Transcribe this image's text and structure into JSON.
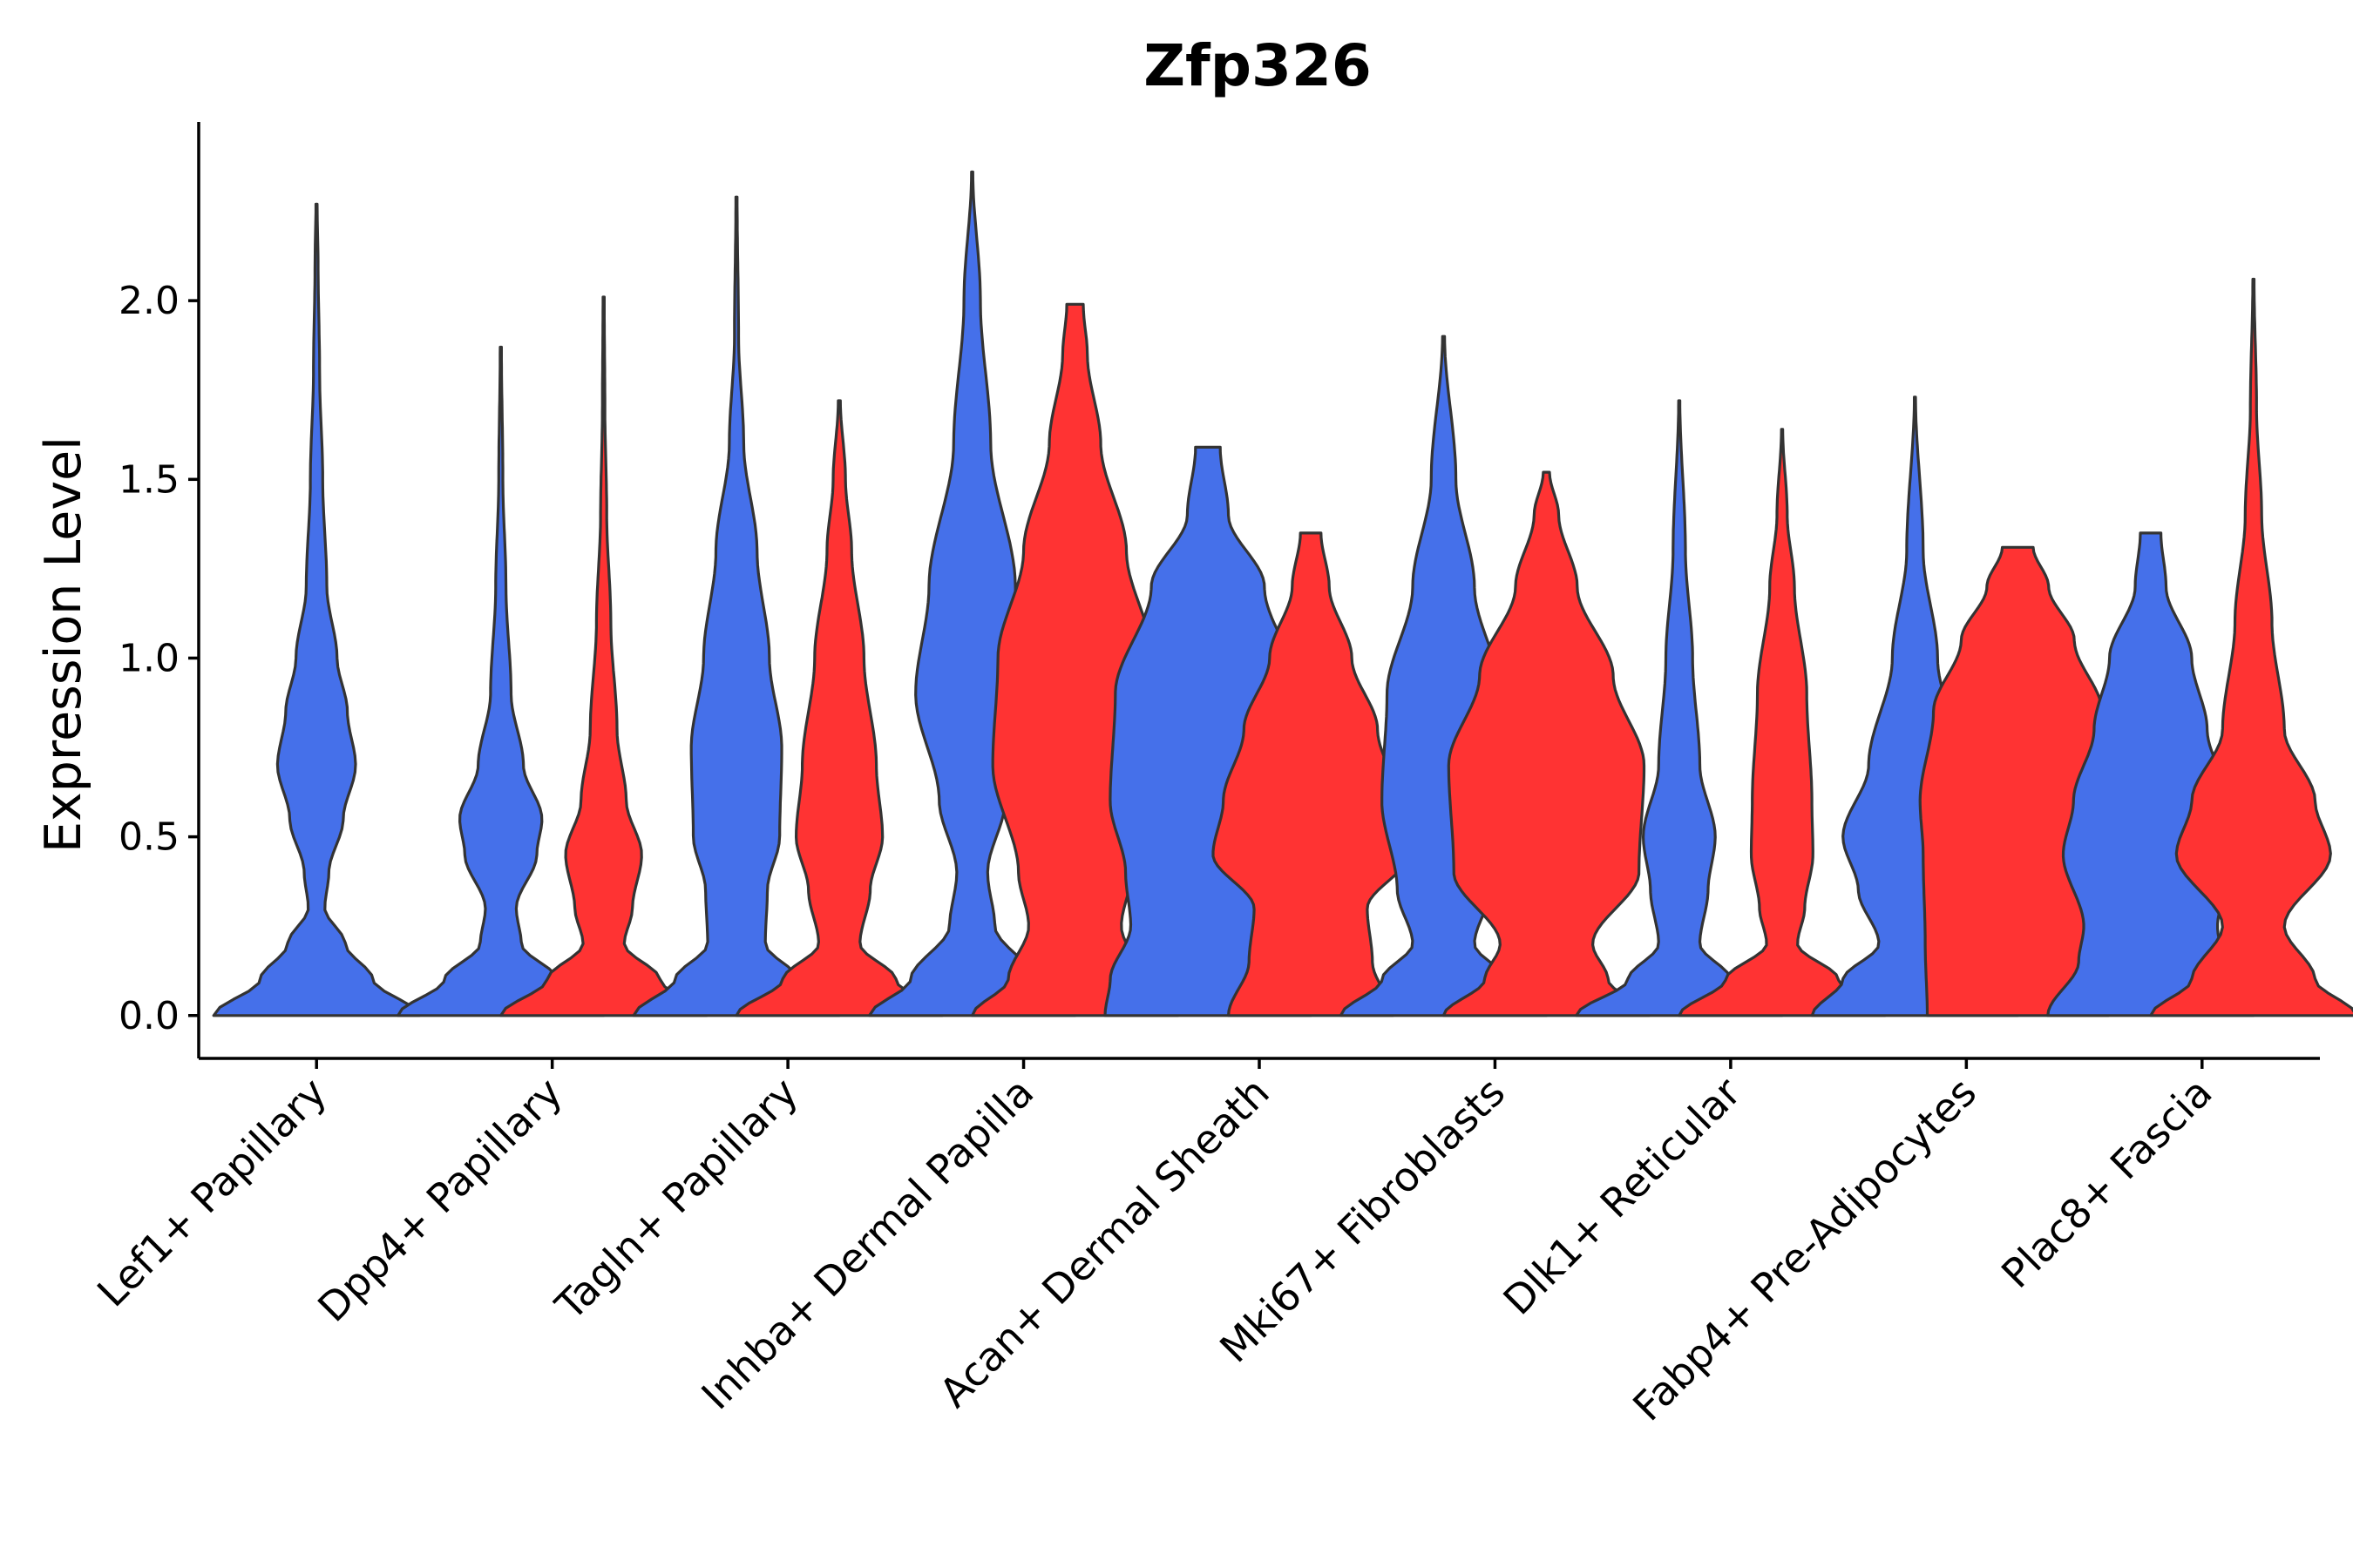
{
  "chart_data": {
    "type": "violin",
    "title": "Zfp326",
    "xlabel": "",
    "ylabel": "Expression Level",
    "ylim": [
      -0.12,
      2.5
    ],
    "yticks": [
      "0.0",
      "0.5",
      "1.0",
      "1.5",
      "2.0"
    ],
    "ytick_values": [
      0,
      0.5,
      1.0,
      1.5,
      2.0
    ],
    "legend": "none",
    "series": [
      {
        "name": "group 1",
        "color": "#4570EA"
      },
      {
        "name": "group 2",
        "color": "#FF3333"
      }
    ],
    "categories": [
      "Lef1+ Papillary",
      "Dpp4+ Papillary",
      "Tagln+ Papillary",
      "Inhba+ Dermal Papilla",
      "Acan+ Dermal Sheath",
      "Mki67+ Fibroblasts",
      "Dlk1+ Reticular",
      "Fabp4+ Pre-Adipocytes",
      "Plac8+ Fascia"
    ],
    "violins": [
      {
        "category": "Lef1+ Papillary",
        "series": "group 1",
        "max": 2.27,
        "profile": [
          [
            0,
            1.0
          ],
          [
            0.1,
            0.55
          ],
          [
            0.2,
            0.28
          ],
          [
            0.3,
            0.08
          ],
          [
            0.4,
            0.12
          ],
          [
            0.55,
            0.26
          ],
          [
            0.7,
            0.38
          ],
          [
            0.85,
            0.3
          ],
          [
            1.0,
            0.2
          ],
          [
            1.2,
            0.1
          ],
          [
            1.5,
            0.06
          ],
          [
            1.8,
            0.03
          ],
          [
            2.1,
            0.015
          ],
          [
            2.27,
            0.006
          ]
        ]
      },
      {
        "category": "Dpp4+ Papillary",
        "series": "group 1",
        "max": 1.87,
        "profile": [
          [
            0,
            1.0
          ],
          [
            0.1,
            0.55
          ],
          [
            0.2,
            0.2
          ],
          [
            0.3,
            0.15
          ],
          [
            0.45,
            0.35
          ],
          [
            0.55,
            0.4
          ],
          [
            0.7,
            0.22
          ],
          [
            0.9,
            0.1
          ],
          [
            1.2,
            0.05
          ],
          [
            1.5,
            0.02
          ],
          [
            1.87,
            0.006
          ]
        ]
      },
      {
        "category": "Dpp4+ Papillary",
        "series": "group 2",
        "max": 2.01,
        "profile": [
          [
            0,
            1.0
          ],
          [
            0.1,
            0.55
          ],
          [
            0.2,
            0.2
          ],
          [
            0.3,
            0.28
          ],
          [
            0.45,
            0.37
          ],
          [
            0.6,
            0.22
          ],
          [
            0.8,
            0.13
          ],
          [
            1.1,
            0.07
          ],
          [
            1.4,
            0.03
          ],
          [
            1.7,
            0.012
          ],
          [
            2.01,
            0.006
          ]
        ]
      },
      {
        "category": "Tagln+ Papillary",
        "series": "group 1",
        "max": 2.29,
        "profile": [
          [
            0,
            1.0
          ],
          [
            0.1,
            0.6
          ],
          [
            0.2,
            0.28
          ],
          [
            0.35,
            0.3
          ],
          [
            0.5,
            0.42
          ],
          [
            0.75,
            0.44
          ],
          [
            1.0,
            0.32
          ],
          [
            1.3,
            0.2
          ],
          [
            1.6,
            0.07
          ],
          [
            1.9,
            0.02
          ],
          [
            2.29,
            0.006
          ]
        ]
      },
      {
        "category": "Tagln+ Papillary",
        "series": "group 2",
        "max": 1.72,
        "profile": [
          [
            0,
            1.0
          ],
          [
            0.1,
            0.55
          ],
          [
            0.2,
            0.2
          ],
          [
            0.35,
            0.3
          ],
          [
            0.5,
            0.42
          ],
          [
            0.7,
            0.36
          ],
          [
            1.0,
            0.24
          ],
          [
            1.3,
            0.12
          ],
          [
            1.5,
            0.06
          ],
          [
            1.72,
            0.01
          ]
        ]
      },
      {
        "category": "Inhba+ Dermal Papilla",
        "series": "group 1",
        "max": 2.36,
        "profile": [
          [
            0,
            1.0
          ],
          [
            0.1,
            0.6
          ],
          [
            0.25,
            0.22
          ],
          [
            0.4,
            0.15
          ],
          [
            0.6,
            0.32
          ],
          [
            0.9,
            0.55
          ],
          [
            1.2,
            0.42
          ],
          [
            1.6,
            0.18
          ],
          [
            2.0,
            0.08
          ],
          [
            2.36,
            0.006
          ]
        ]
      },
      {
        "category": "Inhba+ Dermal Papilla",
        "series": "group 2",
        "max": 1.99,
        "profile": [
          [
            0,
            1.0
          ],
          [
            0.1,
            0.65
          ],
          [
            0.25,
            0.45
          ],
          [
            0.4,
            0.55
          ],
          [
            0.7,
            0.8
          ],
          [
            1.0,
            0.75
          ],
          [
            1.3,
            0.5
          ],
          [
            1.6,
            0.25
          ],
          [
            1.85,
            0.12
          ],
          [
            1.99,
            0.08
          ]
        ]
      },
      {
        "category": "Acan+ Dermal Sheath",
        "series": "group 1",
        "max": 1.59,
        "profile": [
          [
            0,
            1.0
          ],
          [
            0.1,
            0.95
          ],
          [
            0.25,
            0.75
          ],
          [
            0.4,
            0.8
          ],
          [
            0.6,
            0.95
          ],
          [
            0.9,
            0.9
          ],
          [
            1.2,
            0.55
          ],
          [
            1.4,
            0.2
          ],
          [
            1.59,
            0.12
          ]
        ]
      },
      {
        "category": "Acan+ Dermal Sheath",
        "series": "group 2",
        "max": 1.35,
        "profile": [
          [
            0,
            0.8
          ],
          [
            0.15,
            0.6
          ],
          [
            0.3,
            0.55
          ],
          [
            0.45,
            0.95
          ],
          [
            0.6,
            0.85
          ],
          [
            0.8,
            0.65
          ],
          [
            1.0,
            0.4
          ],
          [
            1.2,
            0.18
          ],
          [
            1.35,
            0.1
          ]
        ]
      },
      {
        "category": "Mki67+ Fibroblasts",
        "series": "group 1",
        "max": 1.9,
        "profile": [
          [
            0,
            1.0
          ],
          [
            0.1,
            0.6
          ],
          [
            0.2,
            0.3
          ],
          [
            0.35,
            0.45
          ],
          [
            0.6,
            0.6
          ],
          [
            0.9,
            0.55
          ],
          [
            1.2,
            0.3
          ],
          [
            1.5,
            0.12
          ],
          [
            1.9,
            0.01
          ]
        ]
      },
      {
        "category": "Mki67+ Fibroblasts",
        "series": "group 2",
        "max": 1.52,
        "profile": [
          [
            0,
            1.0
          ],
          [
            0.1,
            0.6
          ],
          [
            0.2,
            0.45
          ],
          [
            0.4,
            0.9
          ],
          [
            0.7,
            0.95
          ],
          [
            0.95,
            0.65
          ],
          [
            1.2,
            0.3
          ],
          [
            1.4,
            0.12
          ],
          [
            1.52,
            0.03
          ]
        ]
      },
      {
        "category": "Dlk1+ Reticular",
        "series": "group 1",
        "max": 1.72,
        "profile": [
          [
            0,
            1.0
          ],
          [
            0.1,
            0.5
          ],
          [
            0.2,
            0.2
          ],
          [
            0.35,
            0.28
          ],
          [
            0.5,
            0.35
          ],
          [
            0.7,
            0.2
          ],
          [
            1.0,
            0.13
          ],
          [
            1.3,
            0.06
          ],
          [
            1.72,
            0.006
          ]
        ]
      },
      {
        "category": "Dlk1+ Reticular",
        "series": "group 2",
        "max": 1.64,
        "profile": [
          [
            0,
            1.0
          ],
          [
            0.1,
            0.55
          ],
          [
            0.2,
            0.15
          ],
          [
            0.3,
            0.22
          ],
          [
            0.45,
            0.3
          ],
          [
            0.6,
            0.29
          ],
          [
            0.9,
            0.24
          ],
          [
            1.2,
            0.12
          ],
          [
            1.4,
            0.05
          ],
          [
            1.64,
            0.006
          ]
        ]
      },
      {
        "category": "Fabp4+ Pre-Adipocytes",
        "series": "group 1",
        "max": 1.73,
        "profile": [
          [
            0,
            1.0
          ],
          [
            0.1,
            0.7
          ],
          [
            0.2,
            0.35
          ],
          [
            0.35,
            0.55
          ],
          [
            0.5,
            0.7
          ],
          [
            0.7,
            0.45
          ],
          [
            1.0,
            0.22
          ],
          [
            1.3,
            0.08
          ],
          [
            1.73,
            0.006
          ]
        ]
      },
      {
        "category": "Fabp4+ Pre-Adipocytes",
        "series": "group 2",
        "max": 1.31,
        "profile": [
          [
            0,
            0.88
          ],
          [
            0.2,
            0.9
          ],
          [
            0.45,
            0.92
          ],
          [
            0.6,
            0.95
          ],
          [
            0.85,
            0.82
          ],
          [
            1.05,
            0.55
          ],
          [
            1.2,
            0.3
          ],
          [
            1.31,
            0.15
          ]
        ]
      },
      {
        "category": "Plac8+ Fascia",
        "series": "group 1",
        "max": 1.35,
        "profile": [
          [
            0,
            1.0
          ],
          [
            0.15,
            0.7
          ],
          [
            0.25,
            0.65
          ],
          [
            0.45,
            0.85
          ],
          [
            0.6,
            0.75
          ],
          [
            0.8,
            0.55
          ],
          [
            1.0,
            0.4
          ],
          [
            1.2,
            0.15
          ],
          [
            1.35,
            0.1
          ]
        ]
      },
      {
        "category": "Plac8+ Fascia",
        "series": "group 2",
        "max": 2.06,
        "profile": [
          [
            0,
            1.0
          ],
          [
            0.1,
            0.6
          ],
          [
            0.25,
            0.3
          ],
          [
            0.45,
            0.75
          ],
          [
            0.6,
            0.6
          ],
          [
            0.8,
            0.3
          ],
          [
            1.1,
            0.18
          ],
          [
            1.4,
            0.08
          ],
          [
            1.7,
            0.03
          ],
          [
            2.06,
            0.006
          ]
        ]
      }
    ]
  }
}
